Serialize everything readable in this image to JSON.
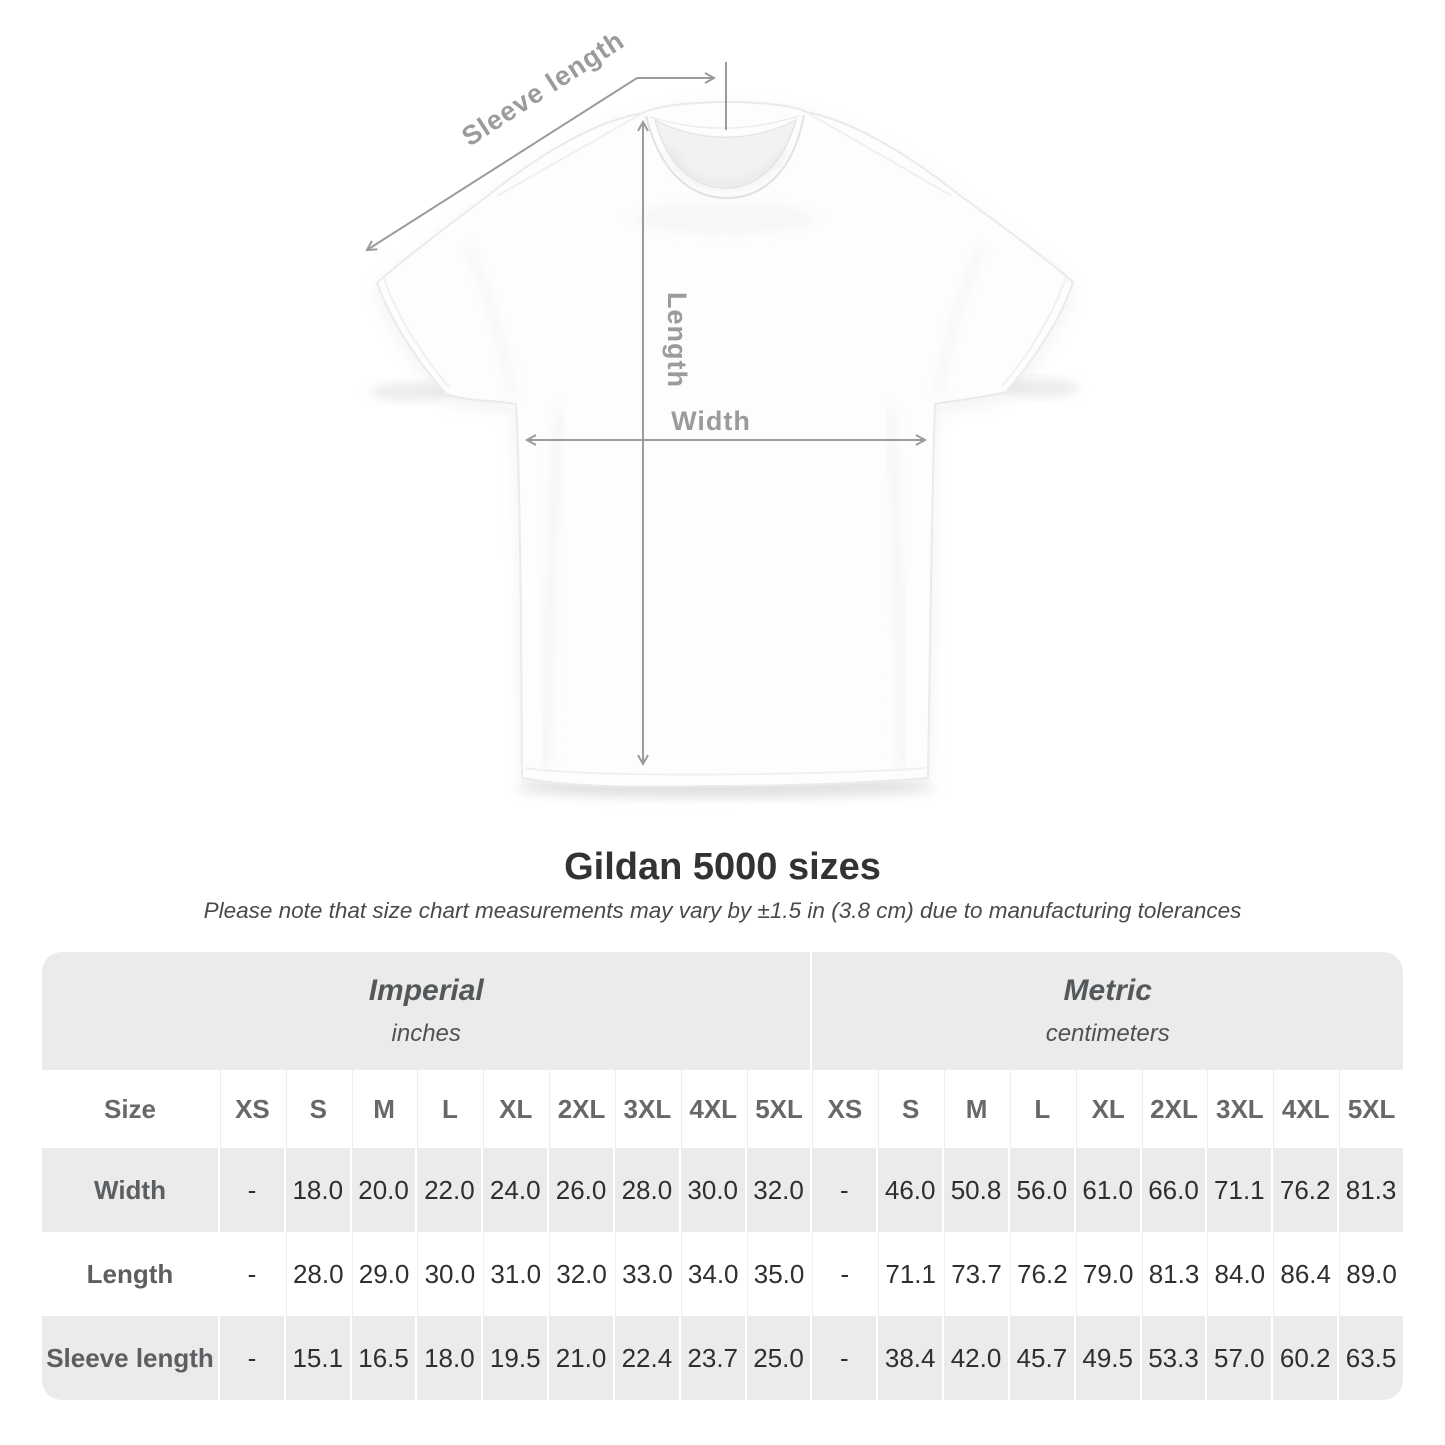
{
  "diagram": {
    "sleeve_length_label": "Sleeve length",
    "length_label": "Length",
    "width_label": "Width"
  },
  "heading": {
    "title": "Gildan 5000 sizes",
    "subtitle": "Please note that size chart measurements may vary by ±1.5 in (3.8 cm) due to manufacturing tolerances"
  },
  "table": {
    "size_header": "Size",
    "groups": [
      {
        "label": "Imperial",
        "unit": "inches"
      },
      {
        "label": "Metric",
        "unit": "centimeters"
      }
    ],
    "sizes": [
      "XS",
      "S",
      "M",
      "L",
      "XL",
      "2XL",
      "3XL",
      "4XL",
      "5XL"
    ],
    "rows": [
      {
        "label": "Width",
        "imperial": [
          "-",
          "18.0",
          "20.0",
          "22.0",
          "24.0",
          "26.0",
          "28.0",
          "30.0",
          "32.0"
        ],
        "metric": [
          "-",
          "46.0",
          "50.8",
          "56.0",
          "61.0",
          "66.0",
          "71.1",
          "76.2",
          "81.3"
        ]
      },
      {
        "label": "Length",
        "imperial": [
          "-",
          "28.0",
          "29.0",
          "30.0",
          "31.0",
          "32.0",
          "33.0",
          "34.0",
          "35.0"
        ],
        "metric": [
          "-",
          "71.1",
          "73.7",
          "76.2",
          "79.0",
          "81.3",
          "84.0",
          "86.4",
          "89.0"
        ]
      },
      {
        "label": "Sleeve length",
        "imperial": [
          "-",
          "15.1",
          "16.5",
          "18.0",
          "19.5",
          "21.0",
          "22.4",
          "23.7",
          "25.0"
        ],
        "metric": [
          "-",
          "38.4",
          "42.0",
          "45.7",
          "49.5",
          "53.3",
          "57.0",
          "60.2",
          "63.5"
        ]
      }
    ]
  },
  "colors": {
    "annotation_gray": "#9b9b9b",
    "row_gray": "#ebebeb",
    "value_text": "#2f2f2f",
    "title_text": "#333333"
  }
}
